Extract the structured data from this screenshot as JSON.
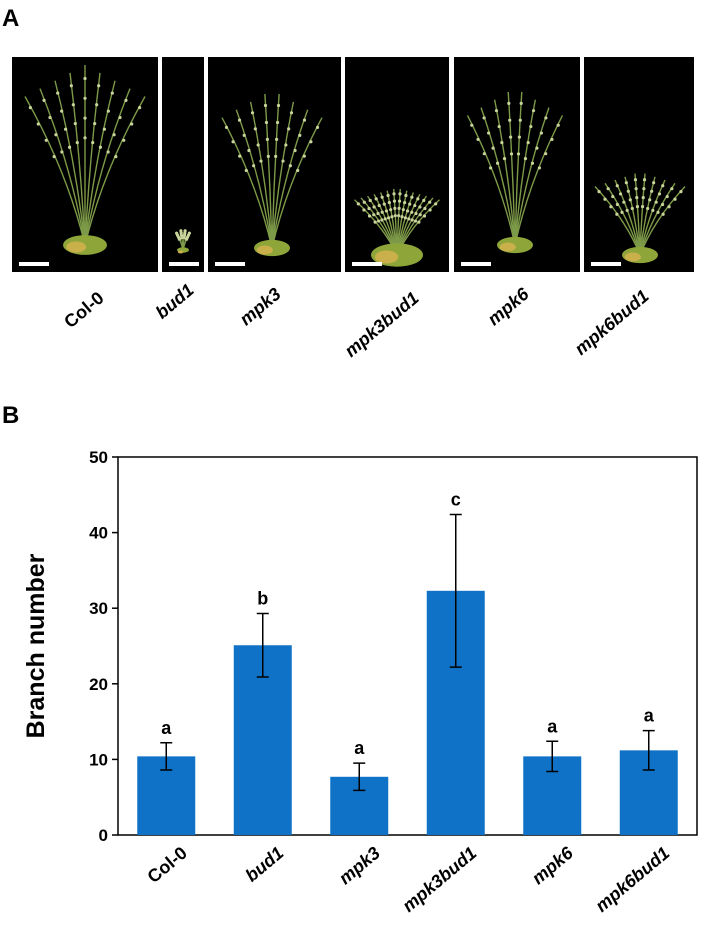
{
  "panel_a": {
    "label": "A",
    "genotypes": [
      "Col-0",
      "bud1",
      "mpk3",
      "mpk3bud1",
      "mpk6",
      "mpk6bud1"
    ]
  },
  "chart_data": {
    "type": "bar",
    "panel_label": "B",
    "y_label": "Branch number",
    "categories": [
      "Col-0",
      "bud1",
      "mpk3",
      "mpk3bud1",
      "mpk6",
      "mpk6bud1"
    ],
    "values": [
      10.4,
      25.1,
      7.7,
      32.3,
      10.4,
      11.2
    ],
    "errors": [
      1.8,
      4.2,
      1.8,
      10.1,
      2.0,
      2.6
    ],
    "annotations": [
      "a",
      "b",
      "a",
      "c",
      "a",
      "a"
    ],
    "color": "#0f72c6",
    "ylim": [
      0,
      50
    ],
    "yticks": [
      0,
      10,
      20,
      30,
      40,
      50
    ]
  }
}
